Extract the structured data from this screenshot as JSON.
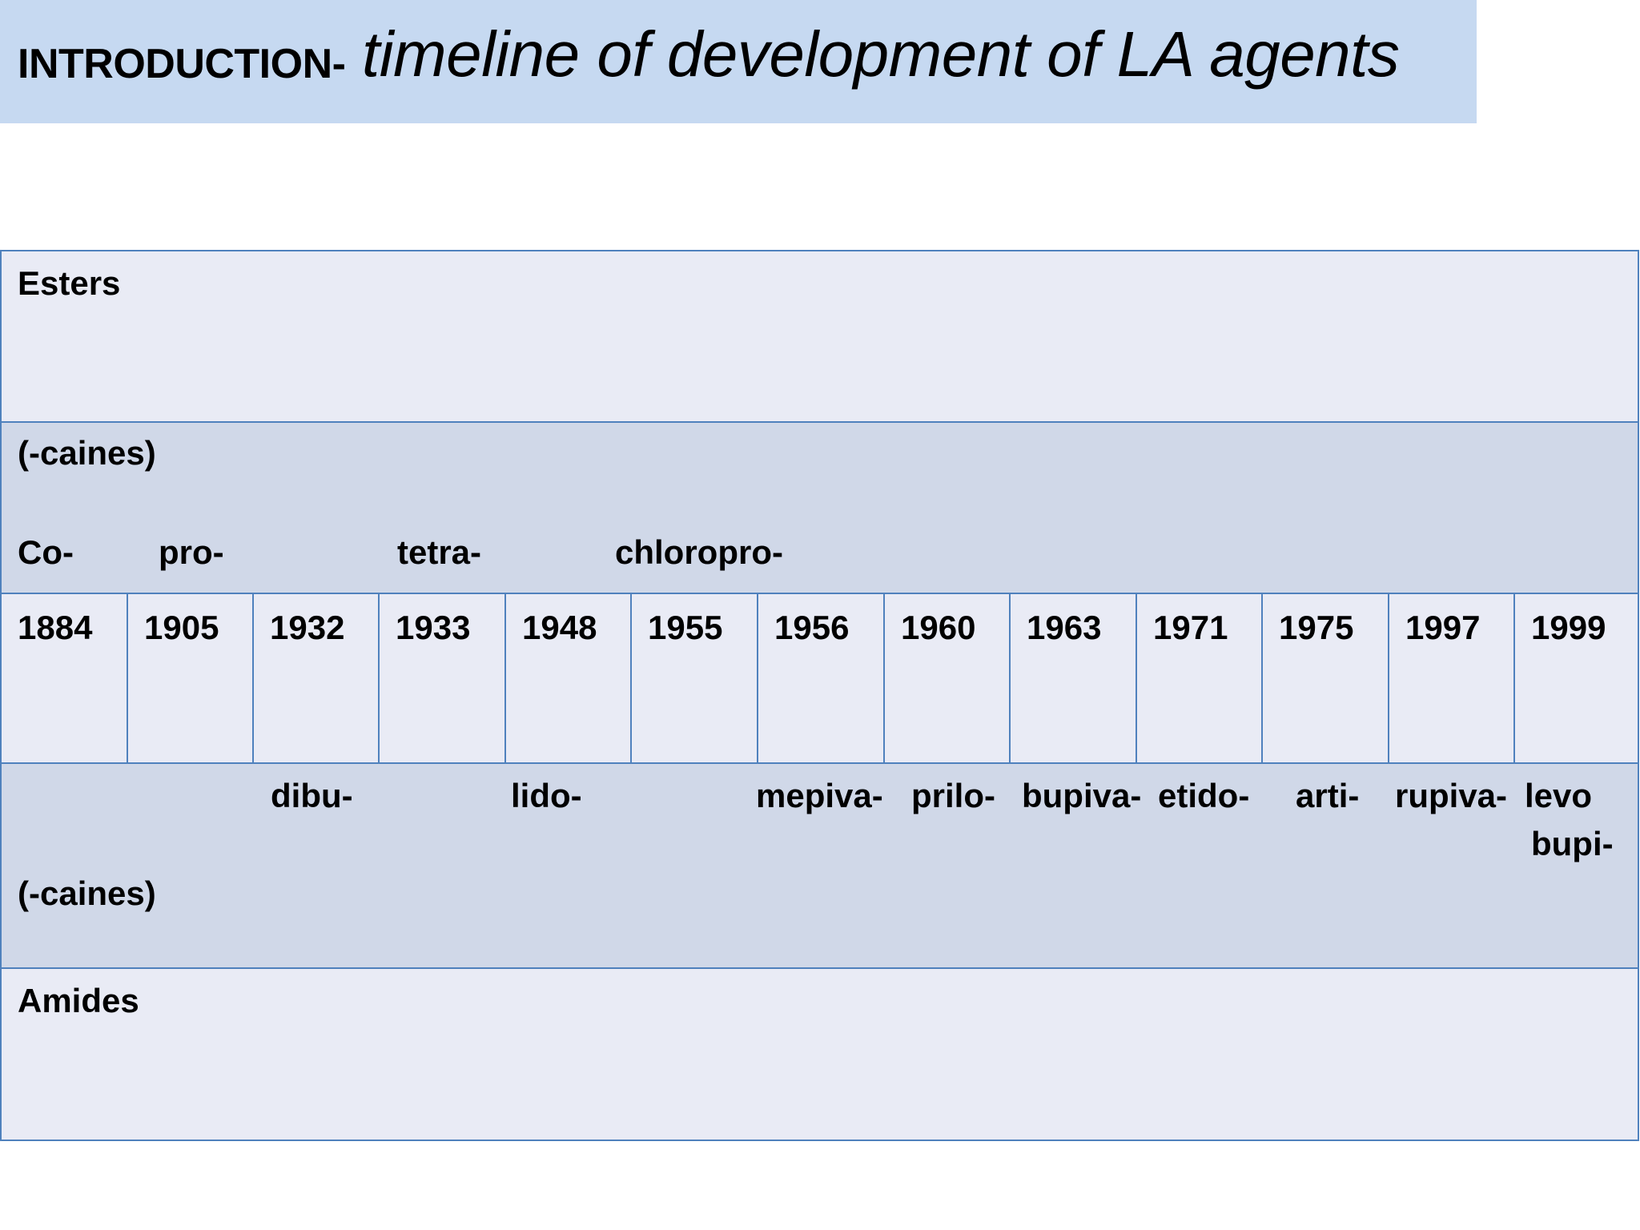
{
  "title": {
    "lead": "INTRODUCTION-",
    "main": "timeline of development of LA agents"
  },
  "esters_row": {
    "label": "Esters"
  },
  "ester_agents_row": {
    "suffix": "(-caines)",
    "agents": [
      "Co-",
      "pro-",
      "tetra-",
      "chloropro-"
    ]
  },
  "years": [
    "1884",
    "1905",
    "1932",
    "1933",
    "1948",
    "1955",
    "1956",
    "1960",
    "1963",
    "1971",
    "1975",
    "1997",
    "1999"
  ],
  "amide_agents_row": {
    "agents": [
      "dibu-",
      "lido-",
      "mepiva-",
      "prilo-",
      "bupiva-",
      "etido-",
      "arti-",
      "rupiva-",
      "levo",
      "bupi-"
    ],
    "suffix": "(-caines)"
  },
  "amides_row": {
    "label": "Amides"
  },
  "colors": {
    "title_background": "#c6d9f1",
    "row_light": "#e9ebf5",
    "row_dark": "#d0d8e8",
    "border": "#4f81bd"
  }
}
